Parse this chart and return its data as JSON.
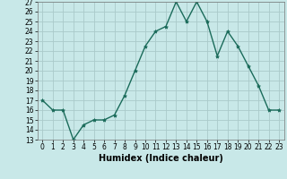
{
  "x": [
    0,
    1,
    2,
    3,
    4,
    5,
    6,
    7,
    8,
    9,
    10,
    11,
    12,
    13,
    14,
    15,
    16,
    17,
    18,
    19,
    20,
    21,
    22,
    23
  ],
  "y": [
    17,
    16,
    16,
    13,
    14.5,
    15,
    15,
    15.5,
    17.5,
    20,
    22.5,
    24,
    24.5,
    27,
    25,
    27,
    25,
    21.5,
    24,
    22.5,
    20.5,
    18.5,
    16,
    16
  ],
  "line_color": "#1a6b5a",
  "marker": "*",
  "marker_size": 3,
  "bg_color": "#c8e8e8",
  "grid_color": "#aacaca",
  "xlabel": "Humidex (Indice chaleur)",
  "ylim": [
    13,
    27
  ],
  "xlim": [
    -0.5,
    23.5
  ],
  "yticks": [
    13,
    14,
    15,
    16,
    17,
    18,
    19,
    20,
    21,
    22,
    23,
    24,
    25,
    26,
    27
  ],
  "xticks": [
    0,
    1,
    2,
    3,
    4,
    5,
    6,
    7,
    8,
    9,
    10,
    11,
    12,
    13,
    14,
    15,
    16,
    17,
    18,
    19,
    20,
    21,
    22,
    23
  ],
  "tick_fontsize": 5.5,
  "xlabel_fontsize": 7.0,
  "linewidth": 1.0
}
